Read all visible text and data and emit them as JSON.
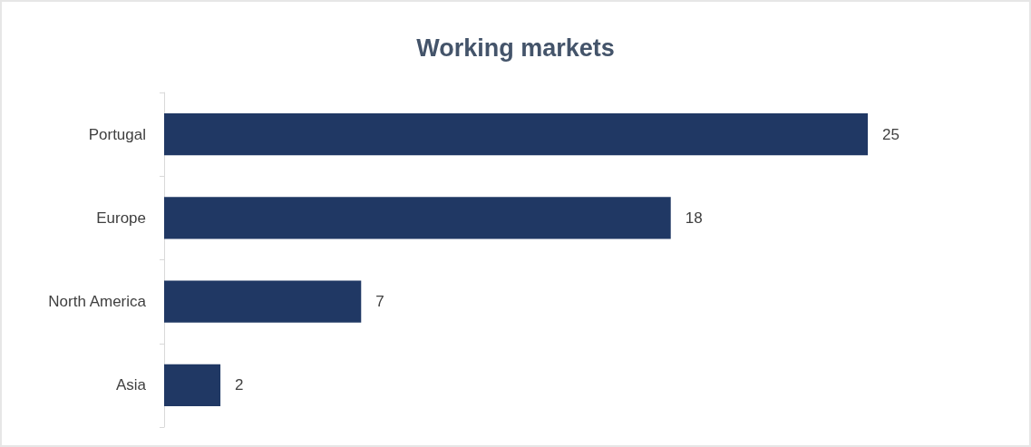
{
  "chart_data": {
    "type": "bar",
    "title": "Working markets",
    "orientation": "horizontal",
    "categories": [
      "Portugal",
      "Europe",
      "North America",
      "Asia"
    ],
    "values": [
      25,
      18,
      7,
      2
    ],
    "color": "#203864",
    "data_labels": true,
    "grid": false
  }
}
